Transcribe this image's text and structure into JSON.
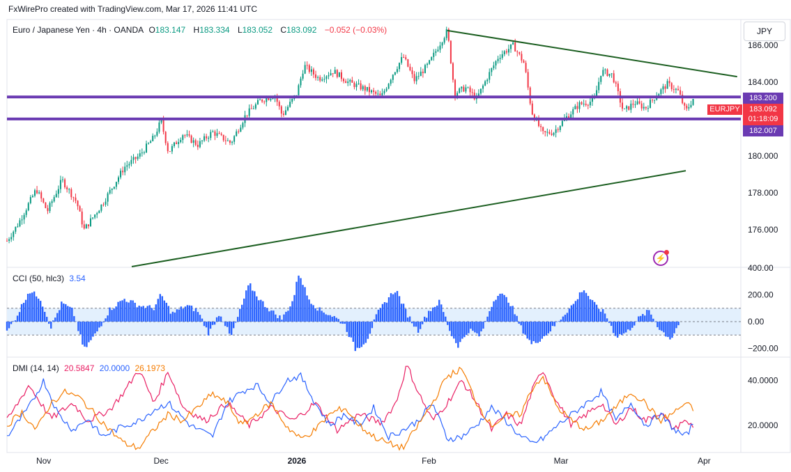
{
  "header": {
    "attribution": "FxWirePro created with TradingView.com, Mar 17, 2026 11:41 UTC"
  },
  "legend": {
    "name": "Euro / Japanese Yen · 4h · OANDA",
    "open_label": "O",
    "open": "183.147",
    "high_label": "H",
    "high": "183.334",
    "low_label": "L",
    "low": "183.052",
    "close_label": "C",
    "close": "183.092",
    "change": "−0.052 (−0.03%)"
  },
  "currency_button": "JPY",
  "price_tags": {
    "upper": "183.200",
    "symbol": "EURJPY",
    "current": "183.092",
    "countdown": "01:18:09",
    "lower": "182.007"
  },
  "icons": {
    "flash": "flash-icon"
  },
  "colors": {
    "up": "#089981",
    "down": "#f23645",
    "level": "#6a3ab2",
    "trend": "#1b5e20",
    "cci": "#2962ff",
    "di_plus": "#e91e63",
    "di_minus": "#2962ff",
    "adx": "#f57c00"
  },
  "chart_data": [
    {
      "type": "candlestick",
      "ylim": [
        174.0,
        187.4
      ],
      "y_ticks": [
        176.0,
        178.0,
        180.0,
        182.0,
        184.0,
        186.0
      ],
      "y_tick_labels": [
        "176.000",
        "178.000",
        "180.000",
        "182.000",
        "184.000",
        "186.000"
      ],
      "x_ticks": [
        "Nov",
        "Dec",
        "2026",
        "Feb",
        "Mar",
        "Apr"
      ],
      "x_tick_pos": [
        0.05,
        0.21,
        0.395,
        0.575,
        0.755,
        0.95
      ],
      "anchors": [
        [
          0.0,
          175.4
        ],
        [
          0.015,
          176.3
        ],
        [
          0.04,
          178.2
        ],
        [
          0.055,
          177.0
        ],
        [
          0.075,
          178.7
        ],
        [
          0.095,
          177.5
        ],
        [
          0.105,
          176.0
        ],
        [
          0.13,
          177.4
        ],
        [
          0.16,
          179.4
        ],
        [
          0.18,
          180.0
        ],
        [
          0.2,
          181.0
        ],
        [
          0.21,
          181.9
        ],
        [
          0.22,
          180.2
        ],
        [
          0.24,
          181.2
        ],
        [
          0.26,
          180.6
        ],
        [
          0.28,
          181.3
        ],
        [
          0.305,
          180.7
        ],
        [
          0.325,
          182.2
        ],
        [
          0.345,
          183.0
        ],
        [
          0.365,
          183.3
        ],
        [
          0.375,
          182.2
        ],
        [
          0.395,
          183.4
        ],
        [
          0.405,
          184.9
        ],
        [
          0.425,
          184.2
        ],
        [
          0.445,
          184.6
        ],
        [
          0.465,
          184.0
        ],
        [
          0.49,
          183.6
        ],
        [
          0.51,
          183.2
        ],
        [
          0.525,
          184.4
        ],
        [
          0.54,
          185.4
        ],
        [
          0.555,
          184.1
        ],
        [
          0.575,
          185.0
        ],
        [
          0.59,
          186.1
        ],
        [
          0.6,
          186.8
        ],
        [
          0.61,
          183.4
        ],
        [
          0.625,
          183.7
        ],
        [
          0.64,
          183.1
        ],
        [
          0.655,
          184.3
        ],
        [
          0.67,
          185.4
        ],
        [
          0.69,
          186.0
        ],
        [
          0.705,
          185.0
        ],
        [
          0.715,
          182.4
        ],
        [
          0.73,
          181.2
        ],
        [
          0.745,
          181.3
        ],
        [
          0.76,
          182.0
        ],
        [
          0.78,
          182.8
        ],
        [
          0.8,
          183.0
        ],
        [
          0.81,
          184.6
        ],
        [
          0.825,
          184.4
        ],
        [
          0.84,
          182.4
        ],
        [
          0.855,
          182.9
        ],
        [
          0.87,
          182.6
        ],
        [
          0.885,
          183.3
        ],
        [
          0.9,
          183.9
        ],
        [
          0.915,
          183.5
        ],
        [
          0.925,
          182.4
        ],
        [
          0.935,
          183.1
        ]
      ],
      "horizontal_levels": [
        183.2,
        182.007
      ],
      "trend_lines": [
        {
          "from": [
            0.6,
            186.8
          ],
          "to": [
            0.995,
            184.3
          ]
        },
        {
          "from": [
            0.17,
            174.0
          ],
          "to": [
            0.925,
            179.2
          ]
        }
      ]
    },
    {
      "type": "histogram",
      "name": "CCI (50, hlc3)",
      "value": "3.54",
      "ylim": [
        -260,
        400
      ],
      "y_ticks": [
        -200,
        0,
        200,
        400
      ],
      "y_tick_labels": [
        "−200.00",
        "0.00",
        "200.00",
        "400.00"
      ],
      "bands": [
        100,
        -100
      ],
      "anchors": [
        [
          0.0,
          -80
        ],
        [
          0.015,
          60
        ],
        [
          0.03,
          230
        ],
        [
          0.045,
          180
        ],
        [
          0.06,
          -40
        ],
        [
          0.075,
          140
        ],
        [
          0.09,
          80
        ],
        [
          0.105,
          -210
        ],
        [
          0.12,
          -100
        ],
        [
          0.14,
          90
        ],
        [
          0.16,
          170
        ],
        [
          0.18,
          120
        ],
        [
          0.2,
          100
        ],
        [
          0.21,
          200
        ],
        [
          0.225,
          60
        ],
        [
          0.245,
          120
        ],
        [
          0.26,
          80
        ],
        [
          0.275,
          -90
        ],
        [
          0.29,
          70
        ],
        [
          0.305,
          -120
        ],
        [
          0.32,
          120
        ],
        [
          0.33,
          280
        ],
        [
          0.345,
          160
        ],
        [
          0.36,
          80
        ],
        [
          0.375,
          20
        ],
        [
          0.39,
          160
        ],
        [
          0.398,
          370
        ],
        [
          0.41,
          180
        ],
        [
          0.425,
          90
        ],
        [
          0.445,
          40
        ],
        [
          0.46,
          -20
        ],
        [
          0.475,
          -210
        ],
        [
          0.49,
          -140
        ],
        [
          0.505,
          60
        ],
        [
          0.52,
          180
        ],
        [
          0.53,
          240
        ],
        [
          0.545,
          60
        ],
        [
          0.56,
          -70
        ],
        [
          0.575,
          80
        ],
        [
          0.59,
          150
        ],
        [
          0.605,
          -90
        ],
        [
          0.615,
          -180
        ],
        [
          0.63,
          -60
        ],
        [
          0.645,
          -110
        ],
        [
          0.66,
          120
        ],
        [
          0.67,
          220
        ],
        [
          0.685,
          150
        ],
        [
          0.7,
          -40
        ],
        [
          0.715,
          -170
        ],
        [
          0.73,
          -120
        ],
        [
          0.745,
          -40
        ],
        [
          0.76,
          60
        ],
        [
          0.775,
          150
        ],
        [
          0.785,
          250
        ],
        [
          0.8,
          130
        ],
        [
          0.815,
          60
        ],
        [
          0.83,
          -110
        ],
        [
          0.845,
          -80
        ],
        [
          0.86,
          20
        ],
        [
          0.875,
          80
        ],
        [
          0.89,
          -60
        ],
        [
          0.905,
          -130
        ],
        [
          0.915,
          -20
        ]
      ]
    },
    {
      "type": "line",
      "name": "DMI (14, 14)",
      "values_text": [
        "20.5847",
        "20.0000",
        "26.1973"
      ],
      "ylim": [
        8,
        50
      ],
      "y_ticks": [
        20,
        40
      ],
      "y_tick_labels": [
        "20.0000",
        "40.0000"
      ],
      "series": [
        {
          "values_text": "20.5847",
          "color": "#e91e63",
          "anchors": [
            [
              0.0,
              22
            ],
            [
              0.03,
              38
            ],
            [
              0.06,
              23
            ],
            [
              0.09,
              30
            ],
            [
              0.11,
              22
            ],
            [
              0.14,
              27
            ],
            [
              0.16,
              35
            ],
            [
              0.18,
              45
            ],
            [
              0.2,
              30
            ],
            [
              0.22,
              44
            ],
            [
              0.24,
              28
            ],
            [
              0.27,
              22
            ],
            [
              0.3,
              30
            ],
            [
              0.33,
              20
            ],
            [
              0.36,
              28
            ],
            [
              0.39,
              22
            ],
            [
              0.42,
              30
            ],
            [
              0.45,
              18
            ],
            [
              0.48,
              25
            ],
            [
              0.51,
              21
            ],
            [
              0.53,
              30
            ],
            [
              0.545,
              47
            ],
            [
              0.56,
              35
            ],
            [
              0.58,
              22
            ],
            [
              0.6,
              30
            ],
            [
              0.62,
              40
            ],
            [
              0.64,
              30
            ],
            [
              0.66,
              18
            ],
            [
              0.68,
              25
            ],
            [
              0.7,
              20
            ],
            [
              0.715,
              35
            ],
            [
              0.73,
              45
            ],
            [
              0.75,
              30
            ],
            [
              0.77,
              20
            ],
            [
              0.79,
              25
            ],
            [
              0.81,
              30
            ],
            [
              0.83,
              20
            ],
            [
              0.85,
              28
            ],
            [
              0.87,
              22
            ],
            [
              0.89,
              26
            ],
            [
              0.91,
              18
            ],
            [
              0.92,
              22
            ],
            [
              0.935,
              20
            ]
          ]
        },
        {
          "values_text": "20.0000",
          "color": "#2962ff",
          "anchors": [
            [
              0.0,
              15
            ],
            [
              0.03,
              28
            ],
            [
              0.05,
              40
            ],
            [
              0.07,
              25
            ],
            [
              0.09,
              18
            ],
            [
              0.11,
              23
            ],
            [
              0.13,
              15
            ],
            [
              0.16,
              20
            ],
            [
              0.18,
              22
            ],
            [
              0.2,
              27
            ],
            [
              0.22,
              30
            ],
            [
              0.25,
              20
            ],
            [
              0.28,
              15
            ],
            [
              0.3,
              30
            ],
            [
              0.32,
              35
            ],
            [
              0.34,
              38
            ],
            [
              0.36,
              30
            ],
            [
              0.38,
              40
            ],
            [
              0.4,
              42
            ],
            [
              0.42,
              30
            ],
            [
              0.44,
              20
            ],
            [
              0.46,
              25
            ],
            [
              0.48,
              20
            ],
            [
              0.5,
              28
            ],
            [
              0.52,
              15
            ],
            [
              0.54,
              18
            ],
            [
              0.56,
              22
            ],
            [
              0.58,
              30
            ],
            [
              0.6,
              14
            ],
            [
              0.62,
              15
            ],
            [
              0.64,
              20
            ],
            [
              0.66,
              28
            ],
            [
              0.68,
              22
            ],
            [
              0.7,
              15
            ],
            [
              0.715,
              12
            ],
            [
              0.73,
              14
            ],
            [
              0.75,
              20
            ],
            [
              0.77,
              25
            ],
            [
              0.79,
              30
            ],
            [
              0.81,
              35
            ],
            [
              0.83,
              22
            ],
            [
              0.85,
              30
            ],
            [
              0.87,
              20
            ],
            [
              0.89,
              25
            ],
            [
              0.91,
              18
            ],
            [
              0.925,
              15
            ],
            [
              0.935,
              21
            ]
          ]
        },
        {
          "values_text": "26.1973",
          "color": "#f57c00",
          "anchors": [
            [
              0.0,
              20
            ],
            [
              0.02,
              26
            ],
            [
              0.04,
              18
            ],
            [
              0.06,
              30
            ],
            [
              0.08,
              35
            ],
            [
              0.1,
              32
            ],
            [
              0.12,
              25
            ],
            [
              0.14,
              18
            ],
            [
              0.16,
              12
            ],
            [
              0.18,
              10
            ],
            [
              0.2,
              18
            ],
            [
              0.22,
              25
            ],
            [
              0.24,
              22
            ],
            [
              0.26,
              28
            ],
            [
              0.28,
              34
            ],
            [
              0.3,
              30
            ],
            [
              0.32,
              20
            ],
            [
              0.34,
              25
            ],
            [
              0.36,
              30
            ],
            [
              0.38,
              20
            ],
            [
              0.4,
              14
            ],
            [
              0.42,
              18
            ],
            [
              0.44,
              25
            ],
            [
              0.46,
              28
            ],
            [
              0.48,
              20
            ],
            [
              0.5,
              15
            ],
            [
              0.52,
              12
            ],
            [
              0.54,
              10
            ],
            [
              0.56,
              20
            ],
            [
              0.58,
              30
            ],
            [
              0.6,
              42
            ],
            [
              0.62,
              45
            ],
            [
              0.64,
              30
            ],
            [
              0.66,
              20
            ],
            [
              0.68,
              24
            ],
            [
              0.7,
              25
            ],
            [
              0.715,
              36
            ],
            [
              0.73,
              42
            ],
            [
              0.75,
              28
            ],
            [
              0.77,
              22
            ],
            [
              0.79,
              18
            ],
            [
              0.81,
              22
            ],
            [
              0.83,
              28
            ],
            [
              0.85,
              35
            ],
            [
              0.87,
              30
            ],
            [
              0.89,
              22
            ],
            [
              0.91,
              26
            ],
            [
              0.925,
              30
            ],
            [
              0.935,
              27
            ]
          ]
        }
      ]
    }
  ]
}
